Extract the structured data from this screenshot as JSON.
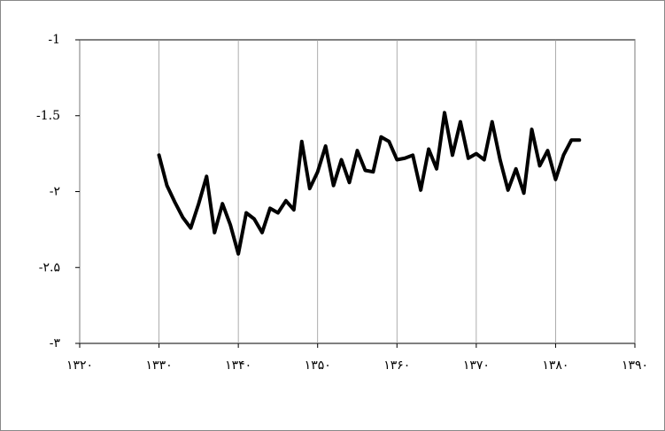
{
  "chart_data": {
    "type": "line",
    "x": [
      1330,
      1331,
      1332,
      1333,
      1334,
      1335,
      1336,
      1337,
      1338,
      1339,
      1340,
      1341,
      1342,
      1343,
      1344,
      1345,
      1346,
      1347,
      1348,
      1349,
      1350,
      1351,
      1352,
      1353,
      1354,
      1355,
      1356,
      1357,
      1358,
      1359,
      1360,
      1361,
      1362,
      1363,
      1364,
      1365,
      1366,
      1367,
      1368,
      1369,
      1370,
      1371,
      1372,
      1373,
      1374,
      1375,
      1376,
      1377,
      1378,
      1379,
      1380,
      1381,
      1382,
      1383
    ],
    "values": [
      -1.76,
      -1.96,
      -2.07,
      -2.17,
      -2.24,
      -2.08,
      -1.9,
      -2.27,
      -2.08,
      -2.22,
      -2.41,
      -2.14,
      -2.18,
      -2.27,
      -2.11,
      -2.14,
      -2.06,
      -2.12,
      -1.67,
      -1.98,
      -1.87,
      -1.7,
      -1.96,
      -1.79,
      -1.94,
      -1.73,
      -1.86,
      -1.87,
      -1.64,
      -1.67,
      -1.79,
      -1.78,
      -1.76,
      -1.99,
      -1.72,
      -1.85,
      -1.48,
      -1.76,
      -1.54,
      -1.78,
      -1.75,
      -1.79,
      -1.54,
      -1.79,
      -1.99,
      -1.85,
      -2.01,
      -1.59,
      -1.83,
      -1.73,
      -1.92,
      -1.76,
      -1.66,
      -1.66
    ],
    "color": "#000000",
    "xlim": [
      1320,
      1390
    ],
    "xticks": [
      {
        "value": 1320,
        "label": "۱۳۲۰"
      },
      {
        "value": 1330,
        "label": "۱۳۳۰"
      },
      {
        "value": 1340,
        "label": "۱۳۴۰"
      },
      {
        "value": 1350,
        "label": "۱۳۵۰"
      },
      {
        "value": 1360,
        "label": "۱۳۶۰"
      },
      {
        "value": 1370,
        "label": "۱۳۷۰"
      },
      {
        "value": 1380,
        "label": "۱۳۸۰"
      },
      {
        "value": 1390,
        "label": "۱۳۹۰"
      }
    ],
    "ylim": [
      -3,
      -1
    ],
    "yticks": [
      {
        "value": -3,
        "label": "-۳"
      },
      {
        "value": -2.5,
        "label": "-۲.۵"
      },
      {
        "value": -2,
        "label": "-۲"
      },
      -1.5,
      -1
    ],
    "grid": true
  }
}
